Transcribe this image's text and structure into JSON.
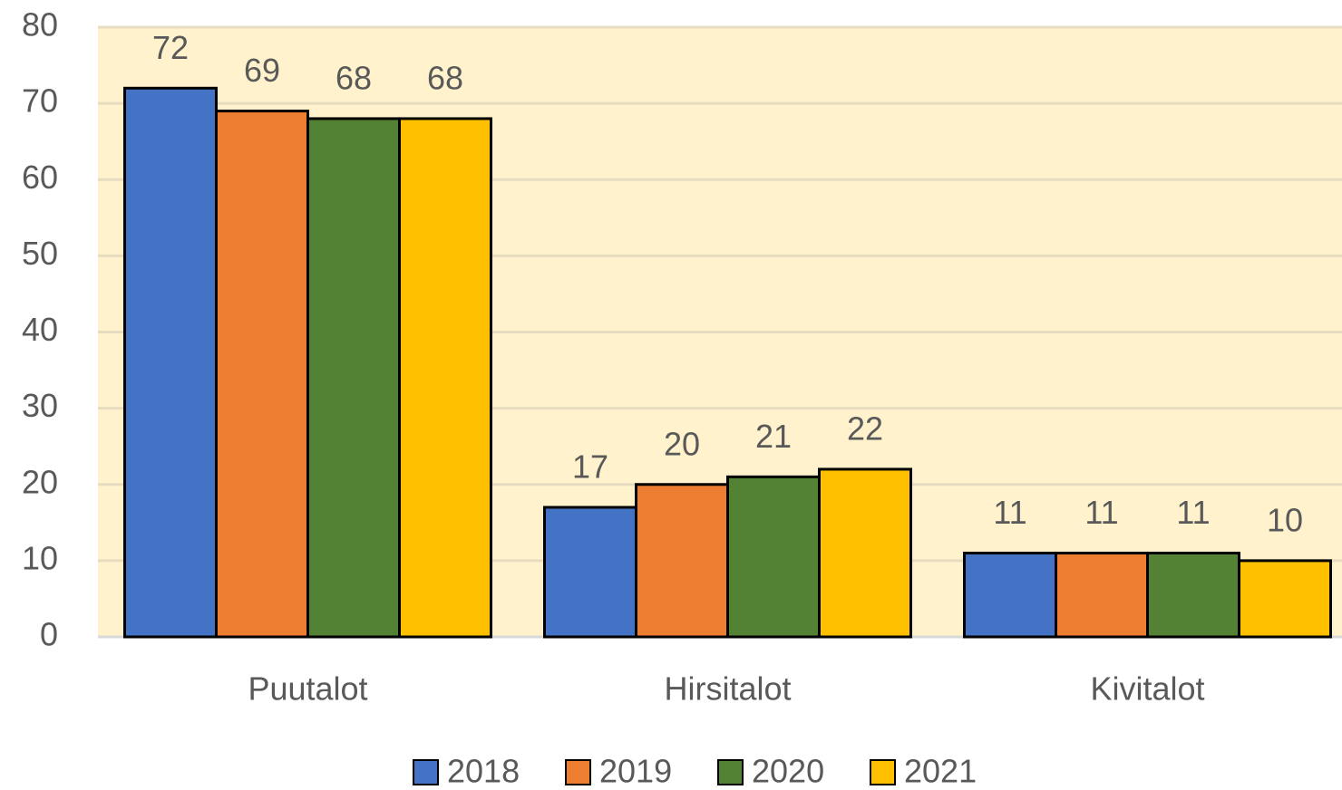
{
  "chart_data": {
    "type": "bar",
    "categories": [
      "Puutalot",
      "Hirsitalot",
      "Kivitalot"
    ],
    "series": [
      {
        "name": "2018",
        "color": "#4472c4",
        "values": [
          72,
          17,
          11
        ]
      },
      {
        "name": "2019",
        "color": "#ed7d31",
        "values": [
          69,
          20,
          11
        ]
      },
      {
        "name": "2020",
        "color": "#548235",
        "values": [
          68,
          21,
          11
        ]
      },
      {
        "name": "2021",
        "color": "#ffc000",
        "values": [
          68,
          22,
          10
        ]
      }
    ],
    "ylim": [
      0,
      80
    ],
    "yticks": [
      0,
      10,
      20,
      30,
      40,
      50,
      60,
      70,
      80
    ],
    "grid": true,
    "legend": "bottom"
  }
}
